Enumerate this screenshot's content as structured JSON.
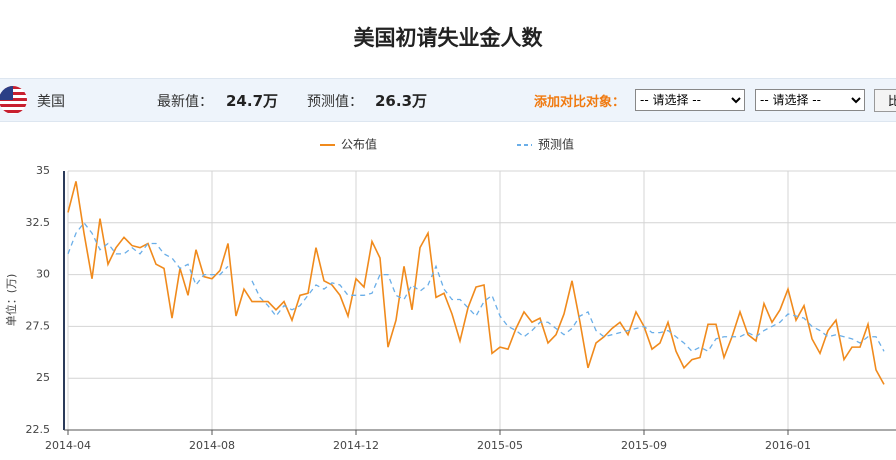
{
  "header": {
    "title": "美国初请失业金人数"
  },
  "toolbar": {
    "country": "美国",
    "latest_label": "最新值：",
    "latest_value": "24.7万",
    "forecast_label": "预测值：",
    "forecast_value": "26.3万",
    "compare_label": "添加对比对象：",
    "select_1": "-- 请选择 --",
    "select_2": "-- 请选择 --",
    "button": "比"
  },
  "chart_data": {
    "type": "line",
    "y_label": "单位：(万)",
    "categories": [
      "2014-04",
      null,
      null,
      null,
      null,
      null,
      null,
      null,
      null,
      null,
      null,
      null,
      null,
      null,
      null,
      null,
      null,
      null,
      "2014-08",
      null,
      null,
      null,
      null,
      null,
      null,
      null,
      null,
      null,
      null,
      null,
      null,
      null,
      null,
      null,
      null,
      null,
      "2014-12",
      null,
      null,
      null,
      null,
      null,
      null,
      null,
      null,
      null,
      null,
      null,
      null,
      null,
      null,
      null,
      null,
      null,
      "2015-05",
      null,
      null,
      null,
      null,
      null,
      null,
      null,
      null,
      null,
      null,
      null,
      null,
      null,
      null,
      null,
      null,
      null,
      "2015-09",
      null,
      null,
      null,
      null,
      null,
      null,
      null,
      null,
      null,
      null,
      null,
      null,
      null,
      null,
      null,
      null,
      null,
      "2016-01",
      null,
      null,
      null,
      null,
      null,
      null,
      null,
      null,
      null,
      null,
      null,
      null
    ],
    "series": [
      {
        "name": "公布值",
        "color": "#f08a1c",
        "dashed": false,
        "values": [
          33.0,
          34.5,
          32.0,
          29.8,
          32.7,
          30.5,
          31.3,
          31.8,
          31.4,
          31.3,
          31.5,
          30.5,
          30.3,
          27.9,
          30.3,
          29.0,
          31.2,
          29.9,
          29.8,
          30.2,
          31.5,
          28.0,
          29.3,
          28.7,
          28.7,
          28.7,
          28.3,
          28.7,
          27.8,
          29.0,
          29.1,
          31.3,
          29.7,
          29.5,
          29.0,
          28.0,
          29.8,
          29.4,
          31.6,
          30.8,
          26.5,
          27.8,
          30.4,
          28.3,
          31.3,
          32.0,
          28.9,
          29.1,
          28.1,
          26.8,
          28.4,
          29.4,
          29.5,
          26.2,
          26.5,
          26.4,
          27.4,
          28.2,
          27.7,
          27.9,
          26.7,
          27.1,
          28.1,
          29.7,
          27.7,
          25.5,
          26.7,
          27.0,
          27.4,
          27.7,
          27.1,
          28.2,
          27.5,
          26.4,
          26.7,
          27.7,
          26.3,
          25.5,
          25.9,
          26.0,
          27.6,
          27.6,
          26.0,
          27.0,
          28.2,
          27.1,
          26.8,
          28.6,
          27.7,
          28.3,
          29.3,
          27.8,
          28.5,
          26.9,
          26.2,
          27.3,
          27.8,
          25.9,
          26.5,
          26.5,
          27.6,
          25.4,
          24.7
        ]
      },
      {
        "name": "预测值",
        "color": "#6aaee8",
        "dashed": true,
        "values": [
          31.0,
          32.0,
          32.5,
          32.0,
          31.2,
          31.5,
          31.0,
          31.0,
          31.3,
          31.0,
          31.5,
          31.5,
          31.0,
          30.8,
          30.3,
          30.5,
          29.5,
          30.0,
          30.0,
          30.0,
          30.4,
          null,
          null,
          29.7,
          28.9,
          28.5,
          28.0,
          28.5,
          28.3,
          28.5,
          29.0,
          29.5,
          29.3,
          29.6,
          29.5,
          29.0,
          29.0,
          29.0,
          29.1,
          30.0,
          30.0,
          29.0,
          28.8,
          29.5,
          29.2,
          29.5,
          30.4,
          29.3,
          28.8,
          28.8,
          28.4,
          28.0,
          28.7,
          29.0,
          28.0,
          27.5,
          27.3,
          27.0,
          27.3,
          27.7,
          27.7,
          27.4,
          27.1,
          27.4,
          28.0,
          28.2,
          27.3,
          27.0,
          27.1,
          27.2,
          27.3,
          27.4,
          27.5,
          27.2,
          27.2,
          27.3,
          27.0,
          26.7,
          26.3,
          26.5,
          26.3,
          26.9,
          27.0,
          27.0,
          27.0,
          27.2,
          27.0,
          27.3,
          27.5,
          27.7,
          28.1,
          28.0,
          27.9,
          27.5,
          27.3,
          27.0,
          27.1,
          27.0,
          26.9,
          26.7,
          27.0,
          27.0,
          26.3
        ]
      }
    ],
    "ylim": [
      22.5,
      35
    ],
    "yticks": [
      22.5,
      25,
      27.5,
      30,
      32.5,
      35
    ],
    "grid": true
  }
}
